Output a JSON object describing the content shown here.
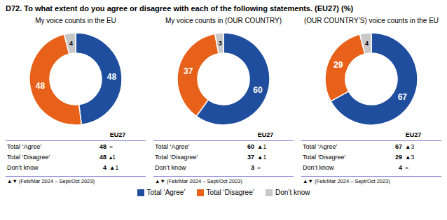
{
  "chart_data": [
    {
      "type": "pie",
      "title": "D72. To what extent do you agree or disagree with each of the following statements. (EU27) (%)",
      "subtitle": "My voice counts in the EU",
      "categories": [
        "Total ‘Agree’",
        "Total ‘Disagree’",
        "Don’t know"
      ],
      "values": [
        48,
        48,
        4
      ],
      "colors": [
        "#1f4e9e",
        "#e8611a",
        "#c8c8c8"
      ],
      "data_labels": true,
      "table": {
        "header": "EU27",
        "rows": [
          [
            "Total ‘Agree’",
            48,
            "="
          ],
          [
            "Total ‘Disagree’",
            48,
            "▴1"
          ],
          [
            "Don’t know",
            4,
            "▲1"
          ]
        ],
        "footnote": "▲▼ (Feb/Mar 2024 – Sept/Oct 2023)"
      }
    },
    {
      "type": "pie",
      "subtitle": "My voice counts in (OUR COUNTRY)",
      "categories": [
        "Total ‘Agree’",
        "Total ‘Disagree’",
        "Don’t know"
      ],
      "values": [
        60,
        37,
        3
      ],
      "colors": [
        "#1f4e9e",
        "#e8611a",
        "#c8c8c8"
      ],
      "data_labels": true,
      "table": {
        "header": "EU27",
        "rows": [
          [
            "Total ‘Agree’",
            60,
            "▲1"
          ],
          [
            "Total ‘Disagree’",
            37,
            "▲1"
          ],
          [
            "Don’t know",
            3,
            "="
          ]
        ],
        "footnote": "▲▼ (Feb/Mar 2024 – Sept/Oct 2023)"
      }
    },
    {
      "type": "pie",
      "subtitle": "(OUR COUNTRY’S) voice counts in the EU",
      "categories": [
        "Total ‘Agree’",
        "Total ‘Disagree’",
        "Don’t know"
      ],
      "values": [
        67,
        29,
        4
      ],
      "colors": [
        "#1f4e9e",
        "#e8611a",
        "#c8c8c8"
      ],
      "data_labels": true,
      "table": {
        "header": "EU27",
        "rows": [
          [
            "Total ‘Agree’",
            67,
            "▲3"
          ],
          [
            "Total ‘Disagree’",
            29,
            "▲3"
          ],
          [
            "Don’t know",
            4,
            "="
          ]
        ],
        "footnote": "▲▼ (Feb/Mar 2024 – Sept/Oct 2023)"
      }
    }
  ]
}
